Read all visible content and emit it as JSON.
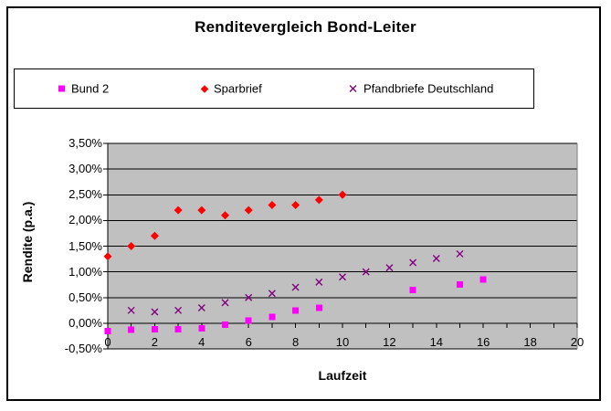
{
  "title": "Renditevergleich Bond-Leiter",
  "chart_data": {
    "type": "scatter",
    "title": "Renditevergleich Bond-Leiter",
    "xlabel": "Laufzeit",
    "ylabel": "Rendite (p.a.)",
    "xlim": [
      0,
      20
    ],
    "ylim": [
      -0.5,
      3.5
    ],
    "grid": "horizontal",
    "legend_position": "top",
    "plot_bg": "#C0C0C0",
    "gridline_color": "#000000",
    "x_minor_tick_step": 1,
    "x_tick_labels": [
      "0",
      "2",
      "4",
      "6",
      "8",
      "10",
      "12",
      "14",
      "16",
      "18",
      "20"
    ],
    "y_ticks": {
      "values": [
        3.5,
        3.0,
        2.5,
        2.0,
        1.5,
        1.0,
        0.5,
        0.0,
        -0.5
      ],
      "labels": [
        "3,50%",
        "3,00%",
        "2,50%",
        "2,00%",
        "1,50%",
        "1,00%",
        "0,50%",
        "0,00%",
        "-0,50%"
      ]
    },
    "series": [
      {
        "name": "Bund 2",
        "marker": "square",
        "color": "#FF00FF",
        "points": [
          [
            0,
            -0.15
          ],
          [
            1,
            -0.13
          ],
          [
            2,
            -0.12
          ],
          [
            3,
            -0.12
          ],
          [
            4,
            -0.1
          ],
          [
            5,
            -0.03
          ],
          [
            6,
            0.05
          ],
          [
            7,
            0.12
          ],
          [
            8,
            0.25
          ],
          [
            9,
            0.3
          ],
          [
            13,
            0.65
          ],
          [
            15,
            0.75
          ],
          [
            16,
            0.85
          ]
        ]
      },
      {
        "name": "Sparbrief",
        "marker": "diamond",
        "color": "#FF0000",
        "points": [
          [
            0,
            1.3
          ],
          [
            1,
            1.5
          ],
          [
            2,
            1.7
          ],
          [
            3,
            2.2
          ],
          [
            4,
            2.2
          ],
          [
            5,
            2.1
          ],
          [
            6,
            2.2
          ],
          [
            7,
            2.3
          ],
          [
            8,
            2.3
          ],
          [
            9,
            2.4
          ],
          [
            10,
            2.5
          ]
        ]
      },
      {
        "name": "Pfandbriefe Deutschland",
        "marker": "x",
        "color": "#800080",
        "points": [
          [
            1,
            0.25
          ],
          [
            2,
            0.22
          ],
          [
            3,
            0.25
          ],
          [
            4,
            0.3
          ],
          [
            5,
            0.4
          ],
          [
            6,
            0.5
          ],
          [
            7,
            0.58
          ],
          [
            8,
            0.7
          ],
          [
            9,
            0.8
          ],
          [
            10,
            0.9
          ],
          [
            11,
            1.0
          ],
          [
            12,
            1.08
          ],
          [
            13,
            1.18
          ],
          [
            14,
            1.26
          ],
          [
            15,
            1.35
          ]
        ]
      }
    ]
  }
}
